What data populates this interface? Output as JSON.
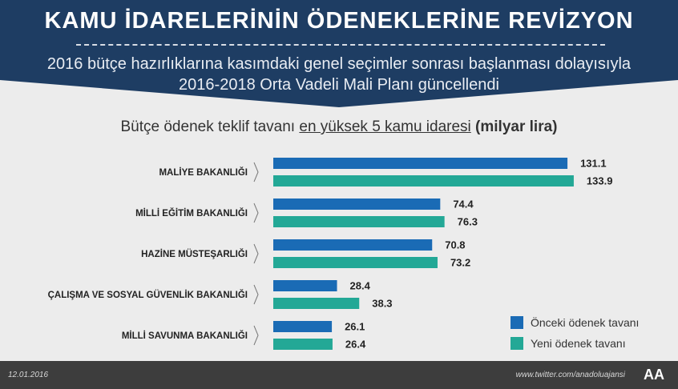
{
  "header": {
    "title": "KAMU İDARELERİNİN ÖDENEKLERİNE REVİZYON",
    "subtitle_line1": "2016 bütçe hazırlıklarına kasımdaki genel seçimler sonrası başlanması dolayısıyla",
    "subtitle_line2": "2016-2018 Orta Vadeli Mali Planı güncellendi"
  },
  "chart_heading": {
    "part1": "Bütçe ödenek teklif tavanı ",
    "part2": "en yüksek 5 kamu idaresi",
    "part3": " (milyar lira)"
  },
  "chart_data": {
    "type": "bar",
    "orientation": "horizontal",
    "categories": [
      "MALİYE BAKANLIĞI",
      "MİLLİ EĞİTİM BAKANLIĞI",
      "HAZİNE MÜSTEŞARLIĞI",
      "ÇALIŞMA VE SOSYAL GÜVENLİK BAKANLIĞI",
      "MİLLİ SAVUNMA BAKANLIĞI"
    ],
    "series": [
      {
        "name": "Önceki ödenek tavanı",
        "values": [
          131.1,
          74.4,
          70.8,
          28.4,
          26.1
        ],
        "labels": [
          "131.1",
          "74.4",
          "70.8",
          "28.4",
          "26.1"
        ],
        "color": "#1a6bb5"
      },
      {
        "name": "Yeni ödenek tavanı",
        "values": [
          133.9,
          76.3,
          73.2,
          38.3,
          26.4
        ],
        "labels": [
          "133.9",
          "76.3",
          "73.2",
          "38.3",
          "26.4"
        ],
        "color": "#23a896"
      }
    ],
    "xlim": [
      0,
      135
    ]
  },
  "legend": {
    "items": [
      {
        "label": "Önceki ödenek tavanı",
        "color": "#1a6bb5"
      },
      {
        "label": "Yeni ödenek tavanı",
        "color": "#23a896"
      }
    ]
  },
  "footer": {
    "date": "12.01.2016",
    "twitter": "www.twitter.com/anadoluajansi",
    "logo_text": "AA"
  }
}
